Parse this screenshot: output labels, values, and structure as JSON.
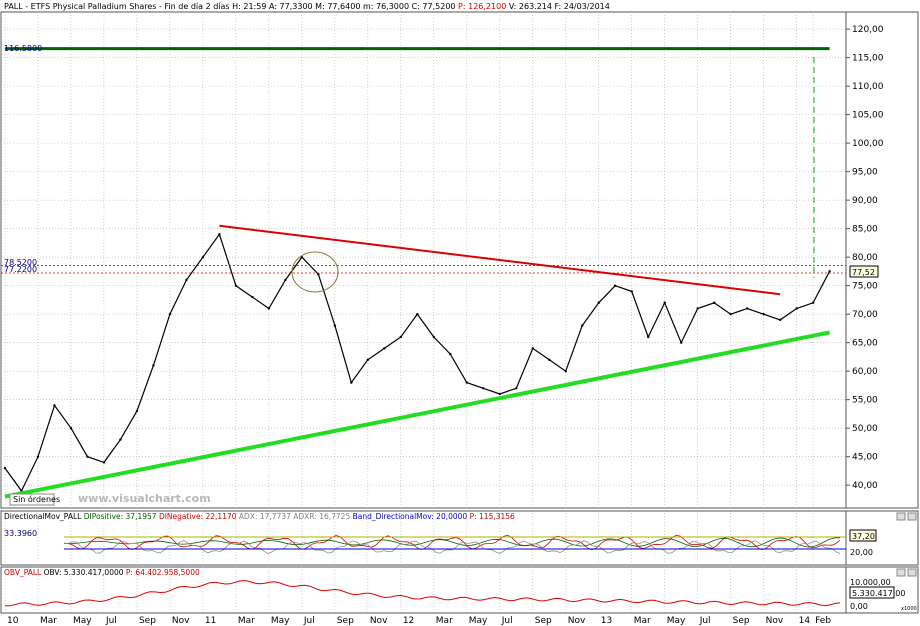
{
  "header": {
    "segments": [
      {
        "text": "PALL - ETFS Physical Palladium Shares - Fin de día 2 días",
        "color": "#000000"
      },
      {
        "text": "H: 21:59",
        "color": "#000000"
      },
      {
        "text": "A: 77,3300",
        "color": "#000000"
      },
      {
        "text": "M: 77,6400",
        "color": "#000000"
      },
      {
        "text": "m: 76,3000",
        "color": "#000000"
      },
      {
        "text": "C: 77,5200",
        "color": "#000000"
      },
      {
        "text": "P: 126,2100",
        "color": "#cc0000"
      },
      {
        "text": "V: 263.214",
        "color": "#000000"
      },
      {
        "text": "F: 24/03/2014",
        "color": "#000000"
      }
    ]
  },
  "main_panel": {
    "ylim": [
      36,
      123
    ],
    "y_ticks": [
      "120,00",
      "115,00",
      "110,00",
      "105,00",
      "100,00",
      "95,00",
      "90,00",
      "85,00",
      "80,00",
      "75,00",
      "70,00",
      "65,00",
      "60,00",
      "55,00",
      "50,00",
      "45,00",
      "40,00"
    ],
    "y_tick_values": [
      120,
      115,
      110,
      105,
      100,
      95,
      90,
      85,
      80,
      75,
      70,
      65,
      60,
      55,
      50,
      45,
      40
    ],
    "price_label": "77,52",
    "left_labels": [
      {
        "text": "116.5800",
        "value": 116.58,
        "color": "#000080"
      },
      {
        "text": "78.5200",
        "value": 78.52,
        "color": "#000080"
      },
      {
        "text": "77.2200",
        "value": 77.22,
        "color": "#000080"
      }
    ],
    "watermark": "www.visualchart.com",
    "orders_label": "Sin órdenes"
  },
  "dmi_panel": {
    "header": [
      {
        "text": "DirectionalMov_PALL",
        "color": "#000000"
      },
      {
        "text": "DIPositive: 37,1957",
        "color": "#006400"
      },
      {
        "text": "DINegative: 22,1170",
        "color": "#cc0000"
      },
      {
        "text": "ADX: 17,7737",
        "color": "#808080"
      },
      {
        "text": "ADXR: 16,7725",
        "color": "#808080"
      },
      {
        "text": "Band_DirectionalMov: 20,0000",
        "color": "#0000cc"
      },
      {
        "text": "P: 115,3156",
        "color": "#cc0000"
      }
    ],
    "left_label": "33.3960",
    "right_label": "37,20",
    "tick": "20,00"
  },
  "obv_panel": {
    "header": [
      {
        "text": "OBV_PALL",
        "color": "#cc0000"
      },
      {
        "text": "OBV: 5.330.417,0000",
        "color": "#000000"
      },
      {
        "text": "P: 64.402.958,5000",
        "color": "#cc0000"
      }
    ],
    "value_label": "5.330.417,00",
    "tick_top": "10.000,00",
    "tick_bottom": "0,00",
    "scale_note": "x1000"
  },
  "x_axis": {
    "labels": [
      "10",
      "Mar",
      "May",
      "Jul",
      "Sep",
      "Nov",
      "11",
      "Mar",
      "May",
      "Jul",
      "Sep",
      "Nov",
      "12",
      "Mar",
      "May",
      "Jul",
      "Sep",
      "Nov",
      "13",
      "Mar",
      "May",
      "Jul",
      "Sep",
      "Nov",
      "14",
      "Feb"
    ]
  },
  "chart_data": {
    "type": "line",
    "title": "PALL - ETFS Physical Palladium Shares - Fin de día 2 días",
    "ylim": [
      36,
      123
    ],
    "x_range": [
      "2010-01",
      "2014-03"
    ],
    "series": [
      {
        "name": "PALL",
        "color": "#000000",
        "points": [
          [
            "2010-01",
            43
          ],
          [
            "2010-02",
            39
          ],
          [
            "2010-03",
            45
          ],
          [
            "2010-04",
            54
          ],
          [
            "2010-05",
            50
          ],
          [
            "2010-06",
            45
          ],
          [
            "2010-07",
            44
          ],
          [
            "2010-08",
            48
          ],
          [
            "2010-09",
            53
          ],
          [
            "2010-10",
            61
          ],
          [
            "2010-11",
            70
          ],
          [
            "2010-12",
            76
          ],
          [
            "2011-01",
            80
          ],
          [
            "2011-02",
            84
          ],
          [
            "2011-03",
            75
          ],
          [
            "2011-04",
            73
          ],
          [
            "2011-05",
            71
          ],
          [
            "2011-06",
            76
          ],
          [
            "2011-07",
            80
          ],
          [
            "2011-08",
            77
          ],
          [
            "2011-09",
            68
          ],
          [
            "2011-10",
            58
          ],
          [
            "2011-11",
            62
          ],
          [
            "2011-12",
            64
          ],
          [
            "2012-01",
            66
          ],
          [
            "2012-02",
            70
          ],
          [
            "2012-03",
            66
          ],
          [
            "2012-04",
            63
          ],
          [
            "2012-05",
            58
          ],
          [
            "2012-06",
            57
          ],
          [
            "2012-07",
            56
          ],
          [
            "2012-08",
            57
          ],
          [
            "2012-09",
            64
          ],
          [
            "2012-10",
            62
          ],
          [
            "2012-11",
            60
          ],
          [
            "2012-12",
            68
          ],
          [
            "2013-01",
            72
          ],
          [
            "2013-02",
            75
          ],
          [
            "2013-03",
            74
          ],
          [
            "2013-04",
            66
          ],
          [
            "2013-05",
            72
          ],
          [
            "2013-06",
            65
          ],
          [
            "2013-07",
            71
          ],
          [
            "2013-08",
            72
          ],
          [
            "2013-09",
            70
          ],
          [
            "2013-10",
            71
          ],
          [
            "2013-11",
            70
          ],
          [
            "2013-12",
            69
          ],
          [
            "2014-01",
            71
          ],
          [
            "2014-02",
            72
          ],
          [
            "2014-03",
            77.52
          ]
        ]
      },
      {
        "name": "",
        "color": "#dd0000",
        "points": [
          [
            "2011-02",
            85.5
          ],
          [
            "2013-12",
            73.5
          ]
        ]
      },
      {
        "name": "",
        "color": "#22dd22",
        "points": [
          [
            "2010-01",
            38
          ],
          [
            "2014-03",
            66.8
          ]
        ]
      },
      {
        "name": "",
        "color": "#006400",
        "points": [
          [
            "2010-01",
            116.58
          ],
          [
            "2014-03",
            116.58
          ]
        ]
      }
    ],
    "annotations": [
      {
        "text": "116.5800",
        "value": 116.58
      },
      {
        "text": "78.5200",
        "value": 78.52
      },
      {
        "text": "77.2200",
        "value": 77.22
      }
    ]
  }
}
